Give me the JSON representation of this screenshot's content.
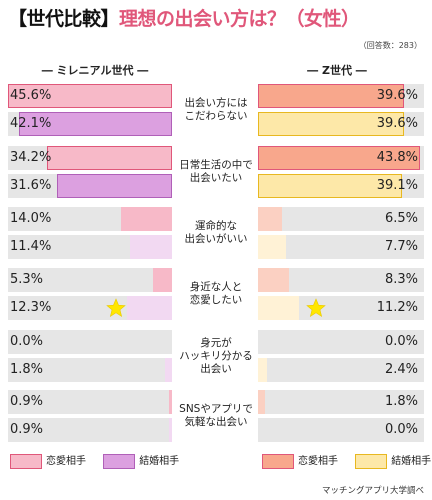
{
  "title": {
    "open": "【",
    "lead": "世代比較",
    "close": "】",
    "main": "理想の出会い方は？（女性）"
  },
  "respondents": "（回答数：283）",
  "groups": {
    "millennial": "― ミレニアル世代 ―",
    "genz": "― Z世代 ―"
  },
  "chart_data": {
    "type": "bar",
    "unit": "%",
    "categories": [
      "出会い方には\nこだわらない",
      "日常生活の中で\n出会いたい",
      "運命的な\n出会いがいい",
      "身近な人と\n恋愛したい",
      "身元が\nハッキリ分かる\n出会い",
      "SNSやアプリで\n気軽な出会い"
    ],
    "series": [
      {
        "group": "ミレニアル世代",
        "name": "恋愛相手",
        "values": [
          45.6,
          34.2,
          14.0,
          5.3,
          0.0,
          0.9
        ]
      },
      {
        "group": "ミレニアル世代",
        "name": "結婚相手",
        "values": [
          42.1,
          31.6,
          11.4,
          12.3,
          1.8,
          0.9
        ]
      },
      {
        "group": "Z世代",
        "name": "恋愛相手",
        "values": [
          39.6,
          43.8,
          6.5,
          8.3,
          0.0,
          1.8
        ]
      },
      {
        "group": "Z世代",
        "name": "結婚相手",
        "values": [
          39.6,
          39.1,
          7.7,
          11.2,
          2.4,
          0.0
        ]
      }
    ],
    "xlim": [
      0,
      45
    ],
    "highlight": "star-icon on 身近な人と恋愛したい 結婚相手 rows",
    "labels": [
      [
        "45.6%",
        "34.2%",
        "14.0%",
        "5.3%",
        "0.0%",
        "0.9%"
      ],
      [
        "42.1%",
        "31.6%",
        "11.4%",
        "12.3%",
        "1.8%",
        "0.9%"
      ],
      [
        "39.6%",
        "43.8%",
        "6.5%",
        "8.3%",
        "0.0%",
        "1.8%"
      ],
      [
        "39.6%",
        "39.1%",
        "7.7%",
        "11.2%",
        "2.4%",
        "0.0%"
      ]
    ]
  },
  "colors": {
    "mil_love": "#f7b9c8",
    "mil_love_strong": "#f7b9c8",
    "mil_love_border": "#e0577a",
    "mil_marriage": "#dca0e0",
    "mil_marriage_light": "#f2d9f2",
    "mil_marriage_border": "#b060b8",
    "genz_love": "#f8a78c",
    "genz_love_light": "#fbd0c2",
    "genz_love_border": "#e0577a",
    "genz_marriage": "#fde8a8",
    "genz_marriage_light": "#fff2d6",
    "genz_marriage_border": "#e8b820",
    "track": "#e6e6e6",
    "star": "#ffe600"
  },
  "legend": {
    "mil_love": "恋愛相手",
    "mil_marriage": "結婚相手",
    "genz_love": "恋愛相手",
    "genz_marriage": "結婚相手"
  },
  "source": "マッチングアプリ大学調べ"
}
